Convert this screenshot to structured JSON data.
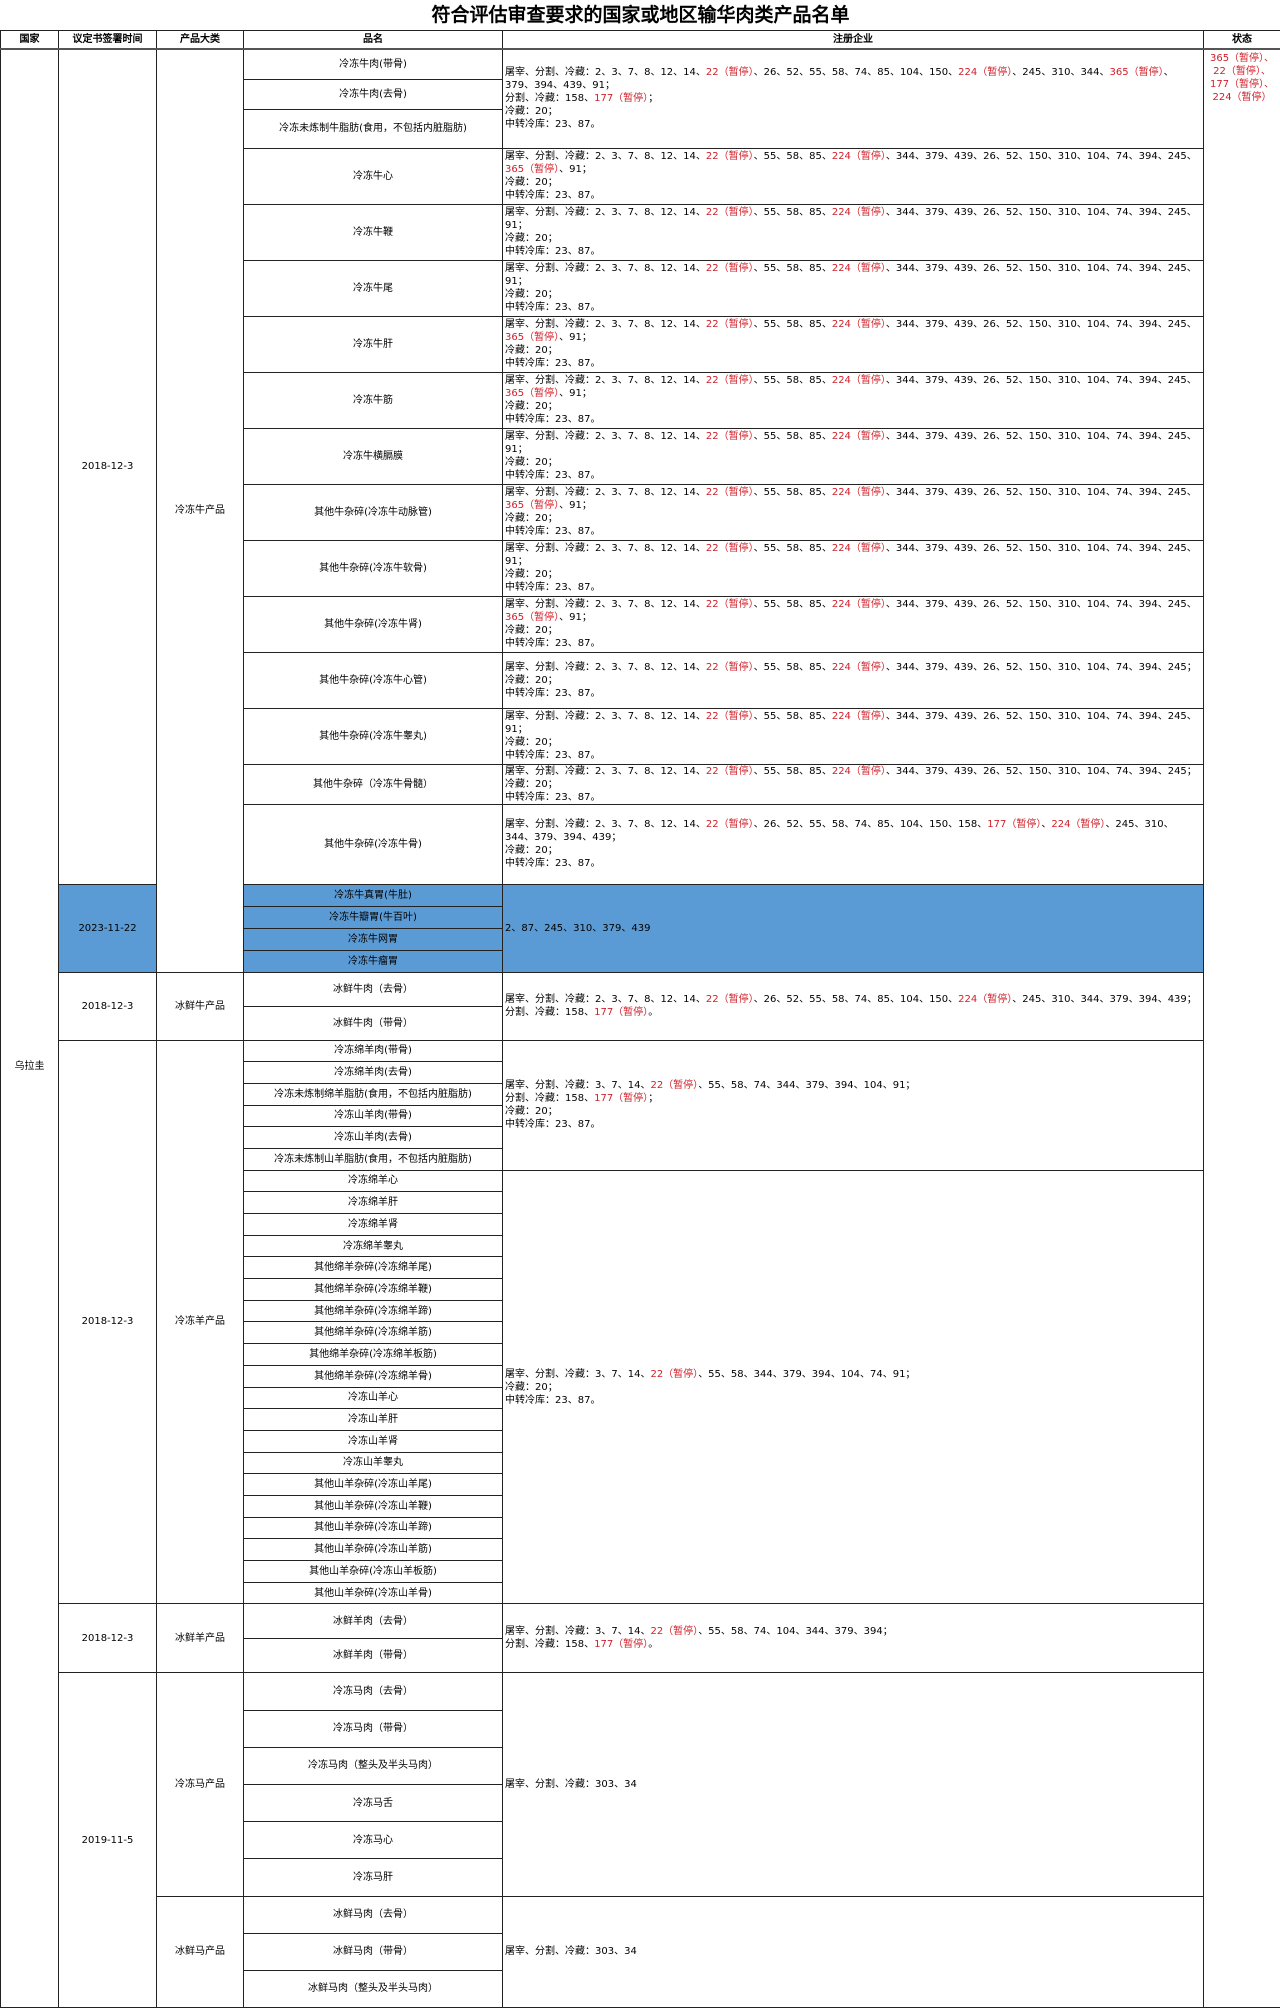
{
  "title": "符合评估审查要求的国家或地区输华肉类产品名单",
  "headers": [
    "国家",
    "议定书签署时间",
    "产品大类",
    "品名",
    "注册企业",
    "状态"
  ],
  "country": "乌拉圭",
  "status": "365（暂停）、22（暂停）、177（暂停）、224（暂停）",
  "highlight_color": "#5b9bd5",
  "suspended_color": "#d0202a",
  "products": [
    "冷冻牛肉(带骨)",
    "冷冻牛肉(去骨)",
    "冷冻未炼制牛脂肪(食用，不包括内脏脂肪)",
    "冷冻牛心",
    "冷冻牛鞭",
    "冷冻牛尾",
    "冷冻牛肝",
    "冷冻牛筋",
    "冷冻牛横膈膜",
    "其他牛杂碎(冷冻牛动脉管)",
    "其他牛杂碎(冷冻牛软骨)",
    "其他牛杂碎(冷冻牛肾)",
    "其他牛杂碎(冷冻牛心管)",
    "其他牛杂碎(冷冻牛睾丸)",
    "其他牛杂碎（冷冻牛骨髓）",
    "其他牛杂碎(冷冻牛骨)",
    "冷冻牛真胃(牛肚)",
    "冷冻牛瓣胃(牛百叶)",
    "冷冻牛网胃",
    "冷冻牛瘤胃",
    "冰鲜牛肉（去骨）",
    "冰鲜牛肉（带骨）",
    "冷冻绵羊肉(带骨)",
    "冷冻绵羊肉(去骨)",
    "冷冻未炼制绵羊脂肪(食用，不包括内脏脂肪)",
    "冷冻山羊肉(带骨)",
    "冷冻山羊肉(去骨)",
    "冷冻未炼制山羊脂肪(食用，不包括内脏脂肪)",
    "冷冻绵羊心",
    "冷冻绵羊肝",
    "冷冻绵羊肾",
    "冷冻绵羊睾丸",
    "其他绵羊杂碎(冷冻绵羊尾)",
    "其他绵羊杂碎(冷冻绵羊鞭)",
    "其他绵羊杂碎(冷冻绵羊蹄)",
    "其他绵羊杂碎(冷冻绵羊筋)",
    "其他绵羊杂碎(冷冻绵羊板筋)",
    "其他绵羊杂碎(冷冻绵羊骨)",
    "冷冻山羊心",
    "冷冻山羊肝",
    "冷冻山羊肾",
    "冷冻山羊睾丸",
    "其他山羊杂碎(冷冻山羊尾)",
    "其他山羊杂碎(冷冻山羊鞭)",
    "其他山羊杂碎(冷冻山羊蹄)",
    "其他山羊杂碎(冷冻山羊筋)",
    "其他山羊杂碎(冷冻山羊板筋)",
    "其他山羊杂碎(冷冻山羊骨)",
    "冰鲜羊肉（去骨）",
    "冰鲜羊肉（带骨）",
    "冷冻马肉（去骨）",
    "冷冻马肉（带骨）",
    "冷冻马肉（整头及半头马肉）",
    "冷冻马舌",
    "冷冻马心",
    "冷冻马肝",
    "冰鲜马肉（去骨）",
    "冰鲜马肉（带骨）",
    "冰鲜马肉（整头及半头马肉）"
  ],
  "dates": [
    {
      "text": "2018-12-3",
      "rows": 16
    },
    {
      "text": "2023-11-22",
      "rows": 4,
      "highlight": true
    },
    {
      "text": "2018-12-3",
      "rows": 2
    },
    {
      "text": "2018-12-3",
      "rows": 26
    },
    {
      "text": "2018-12-3",
      "rows": 2
    },
    {
      "text": "2019-11-5",
      "rows": 9
    }
  ],
  "categories": [
    {
      "text": "冷冻牛产品",
      "rows": 20
    },
    {
      "text": "冰鲜牛产品",
      "rows": 2
    },
    {
      "text": "冷冻羊产品",
      "rows": 26
    },
    {
      "text": "冰鲜羊产品",
      "rows": 2
    },
    {
      "text": "冷冻马产品",
      "rows": 6
    },
    {
      "text": "冰鲜马产品",
      "rows": 3
    }
  ],
  "enterprises": [
    {
      "rows": 3,
      "text": "屠宰、分割、冷藏：2、3、7、8、12、14、22（暂停）、26、52、55、58、74、85、104、150、224（暂停）、245、310、344、365（暂停）、379、394、439、91；\n分割、冷藏：158、177（暂停）；\n冷藏：20；\n中转冷库：23、87。"
    },
    {
      "rows": 1,
      "text": "屠宰、分割、冷藏：2、3、7、8、12、14、22（暂停）、55、58、85、224（暂停）、344、379、439、26、52、150、310、104、74、394、245、365（暂停）、91；\n冷藏：20；\n中转冷库：23、87。"
    },
    {
      "rows": 1,
      "text": "屠宰、分割、冷藏：2、3、7、8、12、14、22（暂停）、55、58、85、224（暂停）、344、379、439、26、52、150、310、104、74、394、245、91；\n冷藏：20；\n中转冷库：23、87。"
    },
    {
      "rows": 1,
      "text": "屠宰、分割、冷藏：2、3、7、8、12、14、22（暂停）、55、58、85、224（暂停）、344、379、439、26、52、150、310、104、74、394、245、91；\n冷藏：20；\n中转冷库：23、87。"
    },
    {
      "rows": 1,
      "text": "屠宰、分割、冷藏：2、3、7、8、12、14、22（暂停）、55、58、85、224（暂停）、344、379、439、26、52、150、310、104、74、394、245、365（暂停）、91；\n冷藏：20；\n中转冷库：23、87。"
    },
    {
      "rows": 1,
      "text": "屠宰、分割、冷藏：2、3、7、8、12、14、22（暂停）、55、58、85、224（暂停）、344、379、439、26、52、150、310、104、74、394、245、365（暂停）、91；\n冷藏：20；\n中转冷库：23、87。"
    },
    {
      "rows": 1,
      "text": "屠宰、分割、冷藏：2、3、7、8、12、14、22（暂停）、55、58、85、224（暂停）、344、379、439、26、52、150、310、104、74、394、245、91；\n冷藏：20；\n中转冷库：23、87。"
    },
    {
      "rows": 1,
      "text": "屠宰、分割、冷藏：2、3、7、8、12、14、22（暂停）、55、58、85、224（暂停）、344、379、439、26、52、150、310、104、74、394、245、365（暂停）、91；\n冷藏：20；\n中转冷库：23、87。"
    },
    {
      "rows": 1,
      "text": "屠宰、分割、冷藏：2、3、7、8、12、14、22（暂停）、55、58、85、224（暂停）、344、379、439、26、52、150、310、104、74、394、245、91；\n冷藏：20；\n中转冷库：23、87。"
    },
    {
      "rows": 1,
      "text": "屠宰、分割、冷藏：2、3、7、8、12、14、22（暂停）、55、58、85、224（暂停）、344、379、439、26、52、150、310、104、74、394、245、365（暂停）、91；\n冷藏：20；\n中转冷库：23、87。"
    },
    {
      "rows": 1,
      "text": "屠宰、分割、冷藏：2、3、7、8、12、14、22（暂停）、55、58、85、224（暂停）、344、379、439、26、52、150、310、104、74、394、245；\n冷藏：20；\n中转冷库：23、87。"
    },
    {
      "rows": 1,
      "text": "屠宰、分割、冷藏：2、3、7、8、12、14、22（暂停）、55、58、85、224（暂停）、344、379、439、26、52、150、310、104、74、394、245、91；\n冷藏：20；\n中转冷库：23、87。"
    },
    {
      "rows": 1,
      "text": "屠宰、分割、冷藏：2、3、7、8、12、14、22（暂停）、55、58、85、224（暂停）、344、379、439、26、52、150、310、104、74、394、245；\n冷藏：20；\n中转冷库：23、87。"
    },
    {
      "rows": 1,
      "text": "屠宰、分割、冷藏：2、3、7、8、12、14、22（暂停）、26、52、55、58、74、85、104、150、158、177（暂停）、224（暂停）、245、310、344、379、394、439；\n冷藏：20；\n中转冷库：23、87。"
    },
    {
      "rows": 4,
      "text": "2、87、245、310、379、439",
      "highlight": true
    },
    {
      "rows": 2,
      "text": "屠宰、分割、冷藏：2、3、7、8、12、14、22（暂停）、26、52、55、58、74、85、104、150、224（暂停）、245、310、344、379、394、439；\n分割、冷藏：158、177（暂停）。"
    },
    {
      "rows": 6,
      "text": "屠宰、分割、冷藏：3、7、14、22（暂停）、55、58、74、344、379、394、104、91；\n分割、冷藏：158、177（暂停）；\n冷藏：20；\n中转冷库：23、87。"
    },
    {
      "rows": 20,
      "text": "屠宰、分割、冷藏：3、7、14、22（暂停）、55、58、344、379、394、104、74、91；\n冷藏：20；\n中转冷库：23、87。"
    },
    {
      "rows": 2,
      "text": "屠宰、分割、冷藏：3、7、14、22（暂停）、55、58、74、104、344、379、394；\n分割、冷藏：158、177（暂停）。"
    },
    {
      "rows": 6,
      "text": "屠宰、分割、冷藏：303、34"
    },
    {
      "rows": 3,
      "text": "屠宰、分割、冷藏：303、34"
    }
  ]
}
